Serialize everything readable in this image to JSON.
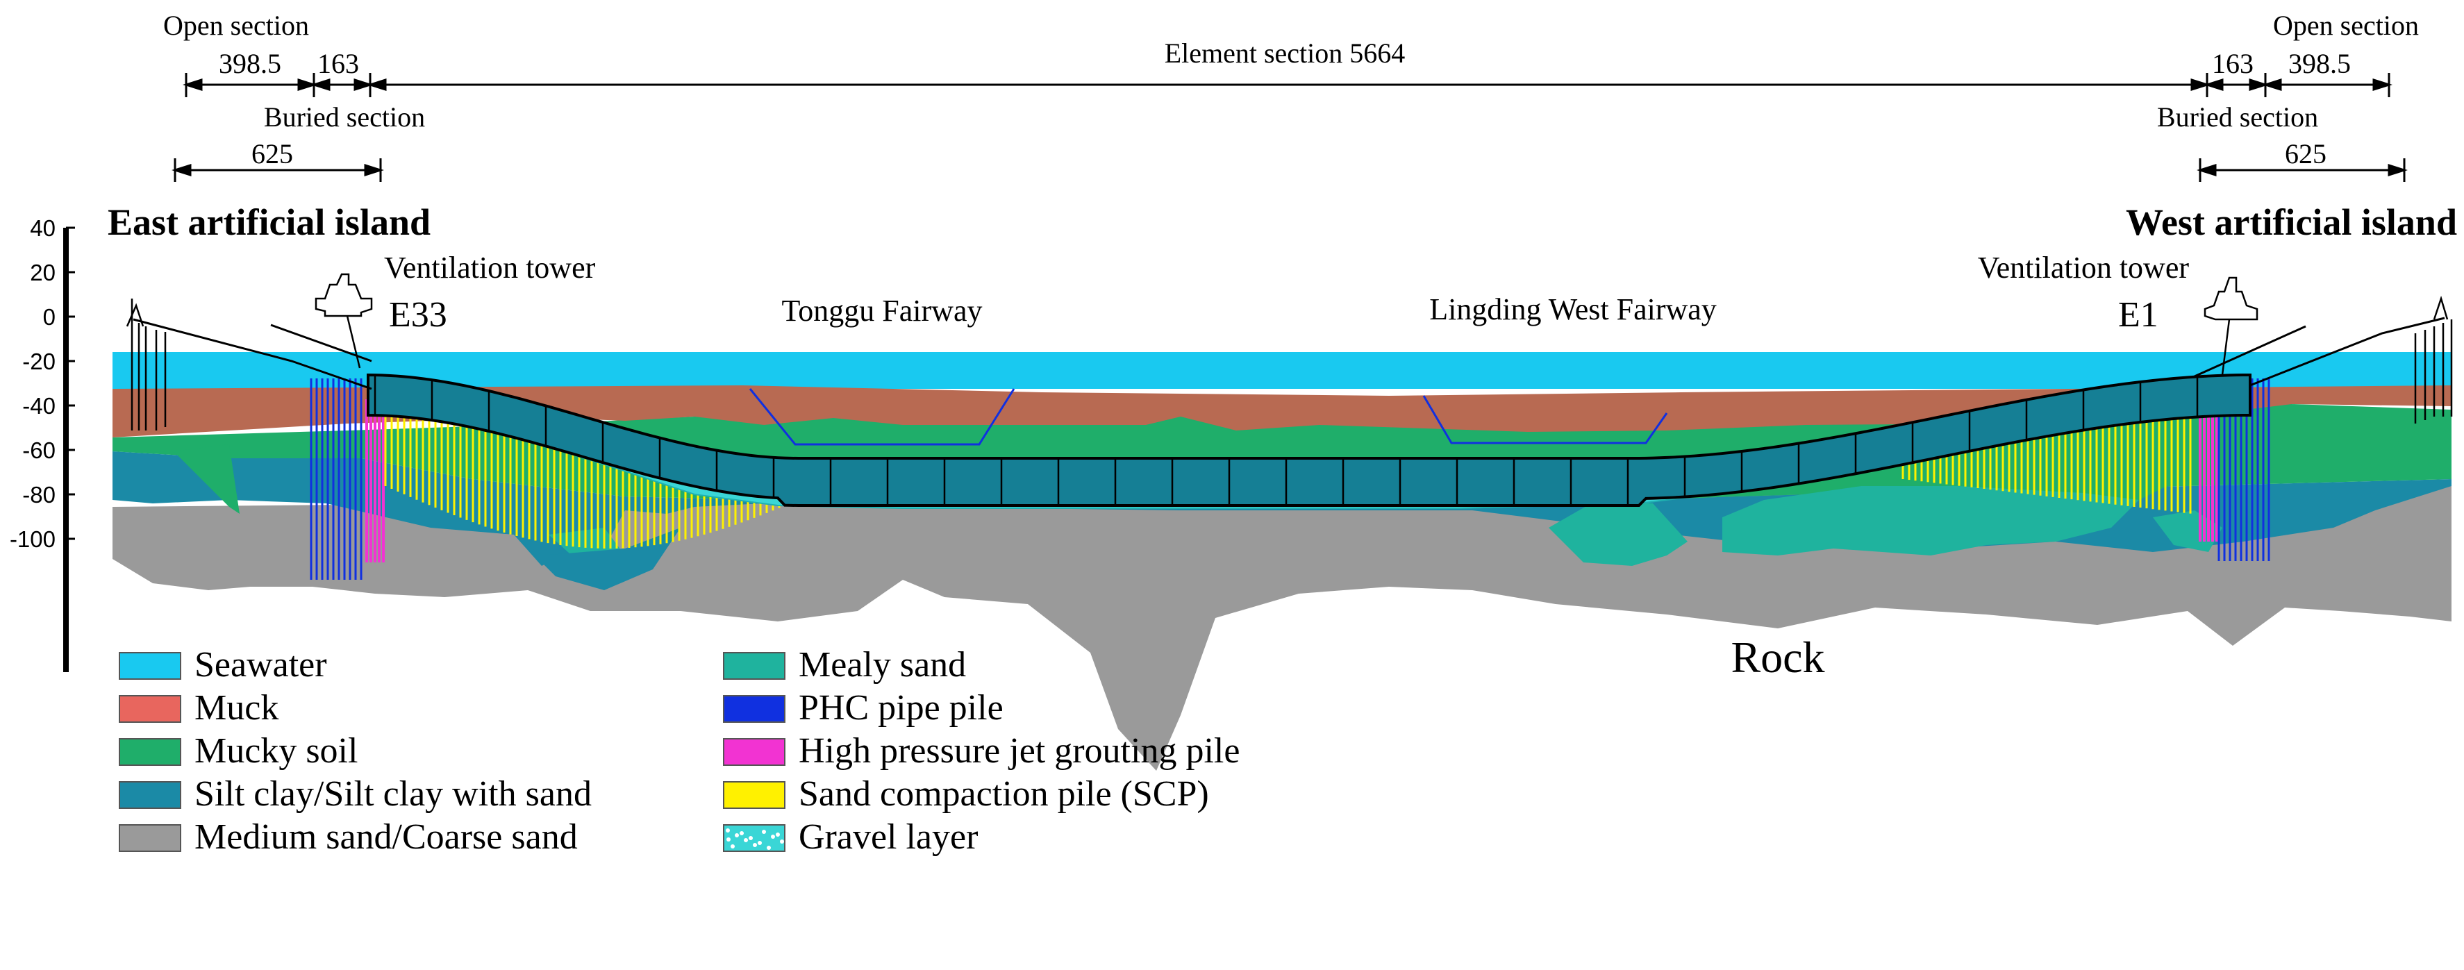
{
  "dimensions": {
    "open_section_left": "Open section",
    "open_section_right": "Open section",
    "open_length_left": "398.5",
    "open_length_right": "398.5",
    "buried_short_left": "163",
    "buried_short_right": "163",
    "element_section": "Element section 5664",
    "buried_section_left": "Buried section",
    "buried_section_right": "Buried section",
    "buried_total_left": "625",
    "buried_total_right": "625"
  },
  "labels": {
    "east_island": "East artificial island",
    "west_island": "West artificial island",
    "vent_left": "Ventilation tower",
    "vent_right": "Ventilation tower",
    "joint_left": "E33",
    "joint_right": "E1",
    "fairway_left": "Tonggu  Fairway",
    "fairway_right": "Lingding West Fairway",
    "rock": "Rock"
  },
  "elevation_axis": {
    "ticks": [
      "40",
      "20",
      "0",
      "-20",
      "-40",
      "-60",
      "-80",
      "-100"
    ]
  },
  "legend": [
    {
      "label": "Seawater",
      "color": "#19c9f0"
    },
    {
      "label": "Muck",
      "color": "#e8665e"
    },
    {
      "label": "Mucky soil",
      "color": "#1fae6a"
    },
    {
      "label": "Silt clay/Silt clay with sand",
      "color": "#1b8aa6"
    },
    {
      "label": "Medium sand/Coarse sand",
      "color": "#9a9a9a"
    },
    {
      "label": "Mealy sand",
      "color": "#1fb39e"
    },
    {
      "label": "PHC pipe pile",
      "color": "#1030e0"
    },
    {
      "label": "High pressure jet grouting pile",
      "color": "#f233d2"
    },
    {
      "label": "Sand compaction pile (SCP)",
      "color": "#fff100"
    },
    {
      "label": "Gravel layer",
      "color": "#3ad6d6"
    }
  ]
}
